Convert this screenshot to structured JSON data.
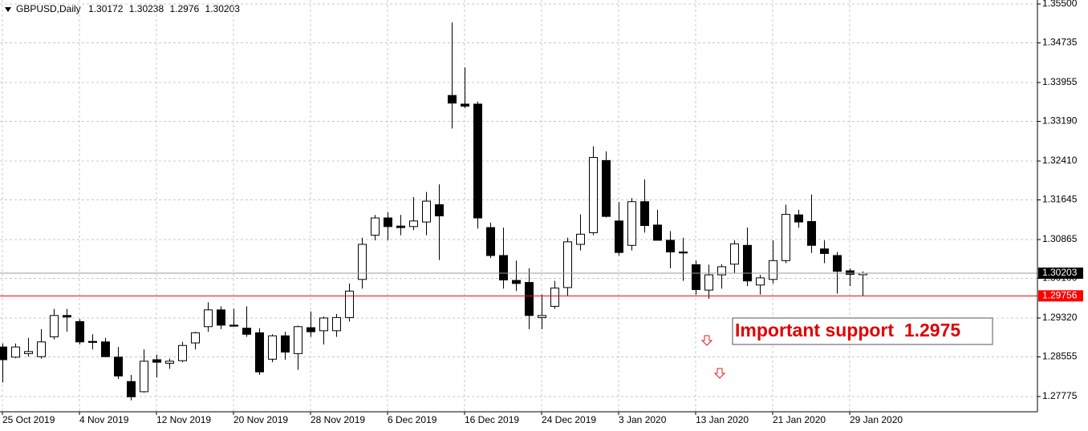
{
  "chart_data": {
    "type": "candlestick",
    "title": "GBPUSD,Daily",
    "categories": [
      "25 Oct 2019",
      null,
      null,
      null,
      null,
      null,
      "4 Nov 2019",
      null,
      null,
      null,
      null,
      null,
      "12 Nov 2019",
      null,
      null,
      null,
      null,
      null,
      "20 Nov 2019",
      null,
      null,
      null,
      null,
      null,
      "28 Nov 2019",
      null,
      null,
      null,
      null,
      null,
      "6 Dec 2019",
      null,
      null,
      null,
      null,
      null,
      "16 Dec 2019",
      null,
      null,
      null,
      null,
      null,
      "24 Dec 2019",
      null,
      null,
      null,
      null,
      null,
      "3 Jan 2020",
      null,
      null,
      null,
      null,
      null,
      "13 Jan 2020",
      null,
      null,
      null,
      null,
      null,
      "21 Jan 2020",
      null,
      null,
      null,
      null,
      null,
      "29 Jan 2020",
      null
    ],
    "open": [
      1.2875,
      1.2855,
      1.2862,
      1.2856,
      1.2895,
      1.2937,
      1.2925,
      1.2886,
      1.2885,
      1.2855,
      1.2807,
      1.2787,
      1.285,
      1.2843,
      1.2848,
      1.2883,
      1.2915,
      1.2948,
      1.2918,
      1.2912,
      1.2903,
      1.2851,
      1.2897,
      1.2862,
      1.2913,
      1.2907,
      1.2907,
      1.2933,
      1.3008,
      1.3095,
      1.3129,
      1.3113,
      1.3112,
      1.3121,
      1.3155,
      1.337,
      1.3353,
      1.3353,
      1.311,
      1.3055,
      1.3006,
      1.3002,
      1.2933,
      1.2955,
      1.2992,
      1.3077,
      1.31,
      1.3242,
      1.3123,
      1.3075,
      1.3161,
      1.3115,
      1.3085,
      1.3062,
      1.3037,
      1.2987,
      1.3017,
      1.3038,
      1.3075,
      1.2997,
      1.3008,
      1.3045,
      1.3135,
      1.3122,
      1.3068,
      1.3055,
      1.3025,
      1.30172
    ],
    "high": [
      1.2882,
      1.2882,
      1.2893,
      1.291,
      1.295,
      1.295,
      1.293,
      1.29,
      1.2893,
      1.2875,
      1.282,
      1.287,
      1.286,
      1.2852,
      1.2885,
      1.2905,
      1.2963,
      1.2955,
      1.295,
      1.2955,
      1.2912,
      1.29,
      1.2905,
      1.2917,
      1.2945,
      1.2935,
      1.294,
      1.3,
      1.309,
      1.3135,
      1.314,
      1.3135,
      1.317,
      1.318,
      1.3195,
      1.3514,
      1.3425,
      1.3358,
      1.312,
      1.311,
      1.3045,
      1.303,
      1.2978,
      1.3005,
      1.309,
      1.3136,
      1.327,
      1.326,
      1.316,
      1.3168,
      1.3205,
      1.3145,
      1.3103,
      1.309,
      1.3045,
      1.3037,
      1.3038,
      1.3085,
      1.311,
      1.3017,
      1.3085,
      1.3155,
      1.3145,
      1.3175,
      1.3085,
      1.3062,
      1.303,
      1.30238
    ],
    "low": [
      1.2805,
      1.2853,
      1.2856,
      1.2852,
      1.289,
      1.2905,
      1.288,
      1.287,
      1.2855,
      1.2812,
      1.277,
      1.2785,
      1.2815,
      1.2832,
      1.2845,
      1.287,
      1.2905,
      1.291,
      1.2915,
      1.2895,
      1.282,
      1.2845,
      1.285,
      1.283,
      1.2895,
      1.288,
      1.2895,
      1.2925,
      1.299,
      1.3085,
      1.3085,
      1.3095,
      1.3105,
      1.3095,
      1.3046,
      1.3305,
      1.3345,
      1.3108,
      1.305,
      1.299,
      1.2985,
      1.291,
      1.291,
      1.295,
      1.2975,
      1.3065,
      1.3095,
      1.313,
      1.3055,
      1.3065,
      1.31,
      1.3085,
      1.303,
      1.3005,
      1.2978,
      1.297,
      1.299,
      1.302,
      1.2995,
      1.2978,
      1.3,
      1.304,
      1.311,
      1.306,
      1.304,
      1.298,
      1.2995,
      1.2976
    ],
    "close": [
      1.285,
      1.2875,
      1.2866,
      1.2885,
      1.2937,
      1.2934,
      1.2885,
      1.2884,
      1.2856,
      1.2818,
      1.2777,
      1.2847,
      1.2845,
      1.2847,
      1.2878,
      1.2903,
      1.2948,
      1.2918,
      1.2916,
      1.29,
      1.2826,
      1.2897,
      1.2865,
      1.2915,
      1.2905,
      1.2932,
      1.2933,
      1.2985,
      1.3077,
      1.3129,
      1.3112,
      1.311,
      1.3123,
      1.3162,
      1.3133,
      1.3355,
      1.3349,
      1.3129,
      1.3055,
      1.3007,
      1.3,
      1.2937,
      1.2937,
      1.2991,
      1.3082,
      1.3097,
      1.3248,
      1.3132,
      1.3061,
      1.3161,
      1.3114,
      1.3085,
      1.3062,
      1.306,
      1.2988,
      1.3017,
      1.3033,
      1.3078,
      1.3005,
      1.3011,
      1.3045,
      1.3136,
      1.3121,
      1.3075,
      1.3059,
      1.3024,
      1.3018,
      1.30203
    ],
    "up_color": "#ffffff",
    "down_color": "#000000",
    "ylim": [
      1.27475,
      1.35579
    ],
    "yticks": [
      {
        "value": 1.355,
        "label": "1.35500"
      },
      {
        "value": 1.34735,
        "label": "1.34735"
      },
      {
        "value": 1.33955,
        "label": "1.33955"
      },
      {
        "value": 1.3319,
        "label": "1.33190"
      },
      {
        "value": 1.3241,
        "label": "1.32410"
      },
      {
        "value": 1.31645,
        "label": "1.31645"
      },
      {
        "value": 1.30865,
        "label": "1.30865"
      },
      {
        "value": 1.301,
        "label": "1.30100"
      },
      {
        "value": 1.2932,
        "label": "1.29320"
      },
      {
        "value": 1.28555,
        "label": "1.28555"
      },
      {
        "value": 1.27775,
        "label": "1.27775"
      }
    ],
    "grid": true,
    "support_line": {
      "value": 1.29756,
      "color": "#ff0000"
    },
    "annotation": "Important support  1.2975"
  }
}
